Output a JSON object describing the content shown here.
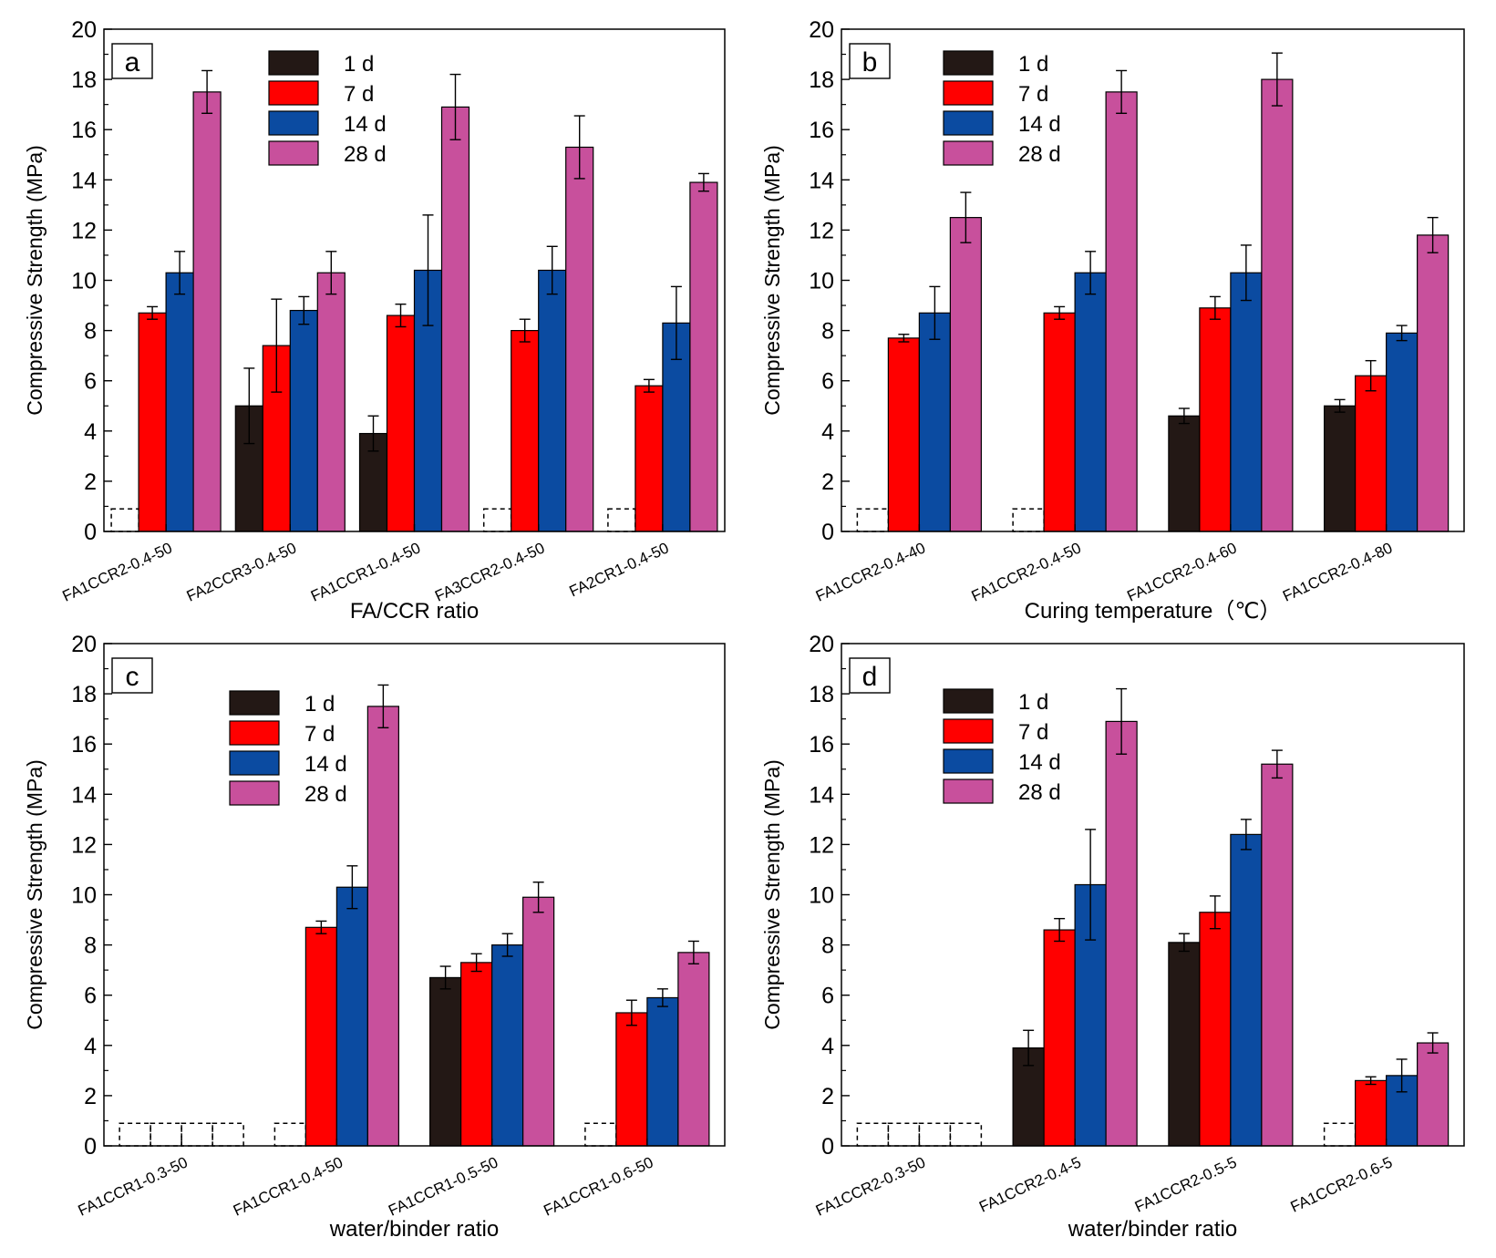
{
  "colors": {
    "1 d": "#231815",
    "7 d": "#ff0000",
    "14 d": "#0b4ba1",
    "28 d": "#c8509c"
  },
  "chart_data": [
    {
      "type": "bar",
      "panel": "a",
      "title": "",
      "xlabel": "FA/CCR ratio",
      "ylabel": "Compressive Strength (MPa)",
      "ylim": [
        0,
        20
      ],
      "yticks": [
        "0",
        "2",
        "4",
        "6",
        "8",
        "10",
        "12",
        "14",
        "16",
        "18",
        "20"
      ],
      "legend_position": "top-center",
      "categories": [
        "FA1CCR2-0.4-50",
        "FA2CCR3-0.4-50",
        "FA1CCR1-0.4-50",
        "FA3CCR2-0.4-50",
        "FA2CR1-0.4-50"
      ],
      "series": [
        {
          "name": "1 d",
          "values": [
            null,
            5.0,
            3.9,
            null,
            null
          ],
          "errors": [
            0,
            1.5,
            0.7,
            0,
            0
          ]
        },
        {
          "name": "7 d",
          "values": [
            8.7,
            7.4,
            8.6,
            8.0,
            5.8
          ],
          "errors": [
            0.25,
            1.85,
            0.45,
            0.45,
            0.25
          ]
        },
        {
          "name": "14 d",
          "values": [
            10.3,
            8.8,
            10.4,
            10.4,
            8.3
          ],
          "errors": [
            0.85,
            0.55,
            2.2,
            0.95,
            1.45
          ]
        },
        {
          "name": "28 d",
          "values": [
            17.5,
            10.3,
            16.9,
            15.3,
            13.9
          ],
          "errors": [
            0.85,
            0.85,
            1.3,
            1.25,
            0.35
          ]
        }
      ],
      "not_measurable_1d": [
        true,
        false,
        false,
        true,
        true
      ]
    },
    {
      "type": "bar",
      "panel": "b",
      "title": "",
      "xlabel": "Curing temperature（℃）",
      "ylabel": "Compressive Strength (MPa)",
      "ylim": [
        0,
        20
      ],
      "yticks": [
        "0",
        "2",
        "4",
        "6",
        "8",
        "10",
        "12",
        "14",
        "16",
        "18",
        "20"
      ],
      "legend_position": "top-left",
      "categories": [
        "FA1CCR2-0.4-40",
        "FA1CCR2-0.4-50",
        "FA1CCR2-0.4-60",
        "FA1CCR2-0.4-80"
      ],
      "series": [
        {
          "name": "1 d",
          "values": [
            null,
            null,
            4.6,
            5.0
          ],
          "errors": [
            0,
            0,
            0.3,
            0.25
          ]
        },
        {
          "name": "7 d",
          "values": [
            7.7,
            8.7,
            8.9,
            6.2
          ],
          "errors": [
            0.15,
            0.25,
            0.45,
            0.6
          ]
        },
        {
          "name": "14 d",
          "values": [
            8.7,
            10.3,
            10.3,
            7.9
          ],
          "errors": [
            1.05,
            0.85,
            1.1,
            0.3
          ]
        },
        {
          "name": "28 d",
          "values": [
            12.5,
            17.5,
            18.0,
            11.8
          ],
          "errors": [
            1.0,
            0.85,
            1.05,
            0.7
          ]
        }
      ],
      "not_measurable_1d": [
        true,
        true,
        false,
        false
      ]
    },
    {
      "type": "bar",
      "panel": "c",
      "title": "",
      "xlabel": "water/binder ratio",
      "ylabel": "Compressive Strength (MPa)",
      "ylim": [
        0,
        20
      ],
      "yticks": [
        "0",
        "2",
        "4",
        "6",
        "8",
        "10",
        "12",
        "14",
        "16",
        "18",
        "20"
      ],
      "legend_position": "top-left",
      "categories": [
        "FA1CCR1-0.3-50",
        "FA1CCR1-0.4-50",
        "FA1CCR1-0.5-50",
        "FA1CCR1-0.6-50"
      ],
      "series": [
        {
          "name": "1 d",
          "values": [
            null,
            null,
            6.7,
            null
          ],
          "errors": [
            0,
            0,
            0.45,
            0
          ]
        },
        {
          "name": "7 d",
          "values": [
            null,
            8.7,
            7.3,
            5.3
          ],
          "errors": [
            0,
            0.25,
            0.35,
            0.5
          ]
        },
        {
          "name": "14 d",
          "values": [
            null,
            10.3,
            8.0,
            5.9
          ],
          "errors": [
            0,
            0.85,
            0.45,
            0.35
          ]
        },
        {
          "name": "28 d",
          "values": [
            null,
            17.5,
            9.9,
            7.7
          ],
          "errors": [
            0,
            0.85,
            0.6,
            0.45
          ]
        }
      ],
      "not_measurable": [
        [
          true,
          true,
          true,
          true
        ],
        [
          true,
          false,
          false,
          false
        ],
        [
          false,
          false,
          false,
          false
        ],
        [
          true,
          false,
          false,
          false
        ]
      ]
    },
    {
      "type": "bar",
      "panel": "d",
      "title": "",
      "xlabel": "water/binder ratio",
      "ylabel": "Compressive Strength (MPa)",
      "ylim": [
        0,
        20
      ],
      "yticks": [
        "0",
        "2",
        "4",
        "6",
        "8",
        "10",
        "12",
        "14",
        "16",
        "18",
        "20"
      ],
      "legend_position": "top-left",
      "categories": [
        "FA1CCR2-0.3-50",
        "FA1CCR2-0.4-5",
        "FA1CCR2-0.5-5",
        "FA1CCR2-0.6-5"
      ],
      "series": [
        {
          "name": "1 d",
          "values": [
            null,
            3.9,
            8.1,
            null
          ],
          "errors": [
            0,
            0.7,
            0.35,
            0
          ]
        },
        {
          "name": "7 d",
          "values": [
            null,
            8.6,
            9.3,
            2.6
          ],
          "errors": [
            0,
            0.45,
            0.65,
            0.15
          ]
        },
        {
          "name": "14 d",
          "values": [
            null,
            10.4,
            12.4,
            2.8
          ],
          "errors": [
            0,
            2.2,
            0.6,
            0.65
          ]
        },
        {
          "name": "28 d",
          "values": [
            null,
            16.9,
            15.2,
            4.1
          ],
          "errors": [
            0,
            1.3,
            0.55,
            0.4
          ]
        }
      ],
      "not_measurable": [
        [
          true,
          true,
          true,
          true
        ],
        [
          false,
          false,
          false,
          false
        ],
        [
          false,
          false,
          false,
          false
        ],
        [
          true,
          false,
          false,
          false
        ]
      ]
    }
  ]
}
